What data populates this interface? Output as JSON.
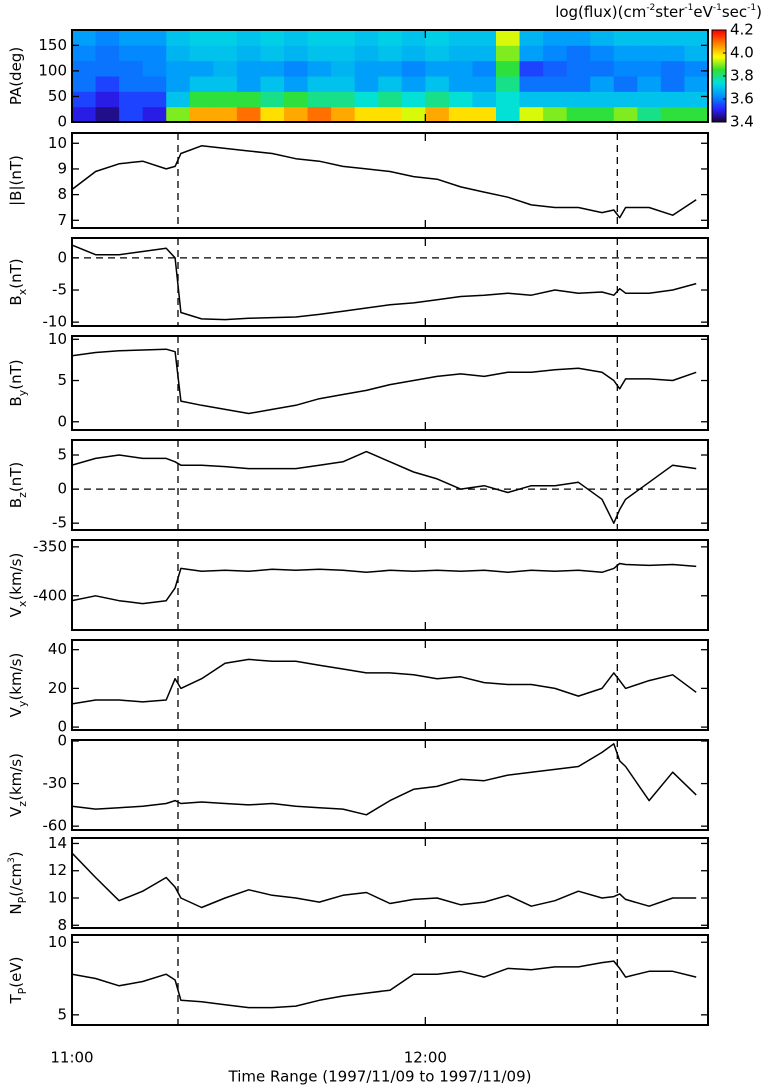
{
  "chart_data": [
    {
      "type": "heatmap",
      "ylabel": [
        {
          "t": "PA(deg)"
        }
      ],
      "ylim": [
        0,
        180
      ],
      "yticks": [
        0,
        50,
        100,
        150
      ],
      "x_bins": [
        0,
        4,
        8,
        12,
        16,
        20,
        24,
        28,
        32,
        36,
        40,
        44,
        48,
        52,
        56,
        60,
        64,
        68,
        72,
        76,
        80,
        84,
        88,
        92,
        96,
        100,
        104,
        108
      ],
      "y_bins": [
        0,
        30,
        60,
        90,
        120,
        150,
        180
      ],
      "values": [
        [
          3.5,
          3.45,
          3.55,
          3.5,
          3.9,
          4.05,
          4.05,
          4.1,
          4.0,
          4.05,
          4.1,
          4.05,
          4.0,
          4.0,
          3.95,
          4.05,
          4.0,
          4.0,
          3.75,
          3.95,
          3.9,
          3.85,
          3.85,
          3.9,
          3.8,
          3.85,
          3.85
        ],
        [
          3.55,
          3.5,
          3.55,
          3.55,
          3.7,
          3.85,
          3.85,
          3.85,
          3.8,
          3.85,
          3.8,
          3.8,
          3.75,
          3.8,
          3.75,
          3.8,
          3.75,
          3.7,
          3.75,
          3.7,
          3.7,
          3.7,
          3.7,
          3.7,
          3.7,
          3.7,
          3.7
        ],
        [
          3.6,
          3.55,
          3.6,
          3.6,
          3.65,
          3.7,
          3.7,
          3.65,
          3.7,
          3.65,
          3.7,
          3.7,
          3.65,
          3.7,
          3.65,
          3.7,
          3.65,
          3.65,
          3.8,
          3.6,
          3.6,
          3.6,
          3.65,
          3.6,
          3.65,
          3.6,
          3.65
        ],
        [
          3.6,
          3.6,
          3.6,
          3.62,
          3.65,
          3.65,
          3.68,
          3.65,
          3.65,
          3.62,
          3.65,
          3.68,
          3.65,
          3.65,
          3.62,
          3.65,
          3.65,
          3.62,
          3.85,
          3.55,
          3.58,
          3.6,
          3.6,
          3.62,
          3.62,
          3.6,
          3.62
        ],
        [
          3.62,
          3.6,
          3.62,
          3.62,
          3.68,
          3.7,
          3.7,
          3.68,
          3.7,
          3.68,
          3.7,
          3.7,
          3.68,
          3.7,
          3.68,
          3.7,
          3.68,
          3.68,
          3.9,
          3.65,
          3.62,
          3.6,
          3.62,
          3.65,
          3.65,
          3.65,
          3.68
        ],
        [
          3.65,
          3.62,
          3.65,
          3.65,
          3.7,
          3.72,
          3.72,
          3.7,
          3.72,
          3.7,
          3.72,
          3.72,
          3.7,
          3.72,
          3.7,
          3.72,
          3.7,
          3.7,
          3.95,
          3.68,
          3.65,
          3.65,
          3.68,
          3.7,
          3.7,
          3.7,
          3.7
        ]
      ],
      "clim": [
        3.4,
        4.2
      ],
      "cticks": [
        3.4,
        3.6,
        3.8,
        {
          "value": 4,
          "label": "4.0"
        },
        4.2
      ],
      "colorscale": [
        "#1a0030",
        "#2a20ff",
        "#0090ff",
        "#00e0e0",
        "#30e030",
        "#ffff00",
        "#ff8000",
        "#ff0000"
      ],
      "ctitle": [
        {
          "t": "log(flux)(cm"
        },
        {
          "t": "-2",
          "sup": true
        },
        {
          "t": "ster"
        },
        {
          "t": "-1",
          "sup": true
        },
        {
          "t": "eV"
        },
        {
          "t": "-1",
          "sup": true
        },
        {
          "t": "sec"
        },
        {
          "t": "-1",
          "sup": true
        },
        {
          "t": ")"
        }
      ]
    },
    {
      "type": "line",
      "ylabel": [
        {
          "t": "|B|(nT)"
        }
      ],
      "ylim": [
        6.7,
        10.4
      ],
      "yticks": [
        7,
        8,
        9,
        10
      ],
      "vlines": [
        18,
        92.6
      ],
      "series": [
        {
          "color": "#000000",
          "values": [
            8.2,
            8.9,
            9.2,
            9.3,
            9.0,
            9.1,
            9.6,
            9.9,
            9.8,
            9.7,
            9.6,
            9.4,
            9.3,
            9.1,
            9.0,
            8.9,
            8.7,
            8.6,
            8.3,
            8.1,
            7.9,
            7.6,
            7.5,
            7.5,
            7.3,
            7.4,
            7.1,
            7.5,
            7.5,
            7.2,
            7.8
          ]
        }
      ]
    },
    {
      "type": "line",
      "ylabel": [
        {
          "t": "B"
        },
        {
          "t": "x",
          "sub": true
        },
        {
          "t": "(nT)"
        }
      ],
      "ylim": [
        -10.6,
        3.1
      ],
      "yticks": [
        -10,
        -5,
        0
      ],
      "vlines": [
        18,
        92.6
      ],
      "hline": 0,
      "series": [
        {
          "color": "#000000",
          "values": [
            2,
            0.5,
            0.5,
            1,
            1.5,
            0,
            -8.5,
            -9.5,
            -9.6,
            -9.4,
            -9.3,
            -9.2,
            -8.8,
            -8.3,
            -7.8,
            -7.3,
            -7,
            -6.5,
            -6,
            -5.8,
            -5.5,
            -5.8,
            -5,
            -5.5,
            -5.3,
            -5.8,
            -4.8,
            -5.5,
            -5.5,
            -5,
            -4
          ]
        }
      ]
    },
    {
      "type": "line",
      "ylabel": [
        {
          "t": "B"
        },
        {
          "t": "y",
          "sub": true
        },
        {
          "t": "(nT)"
        }
      ],
      "ylim": [
        -1,
        10.4
      ],
      "yticks": [
        0,
        5,
        10
      ],
      "vlines": [
        18,
        92.6
      ],
      "series": [
        {
          "color": "#000000",
          "values": [
            8,
            8.4,
            8.6,
            8.7,
            8.8,
            8.5,
            2.5,
            2,
            1.5,
            1,
            1.5,
            2,
            2.8,
            3.3,
            3.8,
            4.5,
            5,
            5.5,
            5.8,
            5.5,
            6,
            6,
            6.3,
            6.5,
            6,
            5,
            4,
            5.2,
            5.2,
            5,
            6
          ]
        }
      ]
    },
    {
      "type": "line",
      "ylabel": [
        {
          "t": "B"
        },
        {
          "t": "z",
          "sub": true
        },
        {
          "t": "(nT)"
        }
      ],
      "ylim": [
        -6,
        7.2
      ],
      "yticks": [
        -5,
        0,
        5
      ],
      "vlines": [
        18,
        92.6
      ],
      "hline": 0,
      "series": [
        {
          "color": "#000000",
          "values": [
            3.5,
            4.5,
            5,
            4.5,
            4.5,
            4,
            3.5,
            3.5,
            3.3,
            3,
            3,
            3,
            3.5,
            4,
            5.5,
            4,
            2.5,
            1.5,
            0,
            0.5,
            -0.5,
            0.5,
            0.5,
            1,
            -1.5,
            -5,
            -3,
            -1.5,
            1,
            3.5,
            3
          ]
        }
      ]
    },
    {
      "type": "line",
      "ylabel": [
        {
          "t": "V"
        },
        {
          "t": "x",
          "sub": true
        },
        {
          "t": "(km/s)"
        }
      ],
      "ylim": [
        -435,
        -343
      ],
      "yticks": [
        -400,
        -350
      ],
      "vlines": [
        18,
        92.6
      ],
      "series": [
        {
          "color": "#000000",
          "values": [
            -405,
            -400,
            -405,
            -408,
            -405,
            -392,
            -372,
            -375,
            -374,
            -375,
            -373,
            -374,
            -373,
            -374,
            -376,
            -374,
            -375,
            -374,
            -375,
            -374,
            -376,
            -374,
            -375,
            -374,
            -376,
            -372,
            -367,
            -368,
            -369,
            -368,
            -370
          ]
        }
      ]
    },
    {
      "type": "line",
      "ylabel": [
        {
          "t": "V"
        },
        {
          "t": "y",
          "sub": true
        },
        {
          "t": "(km/s)"
        }
      ],
      "ylim": [
        -1.5,
        45
      ],
      "yticks": [
        0,
        20,
        40
      ],
      "vlines": [
        18,
        92.6
      ],
      "series": [
        {
          "color": "#000000",
          "values": [
            12,
            14,
            14,
            13,
            14,
            25,
            20,
            25,
            33,
            35,
            34,
            34,
            32,
            30,
            28,
            28,
            27,
            25,
            26,
            23,
            22,
            22,
            20,
            16,
            20,
            28,
            24,
            20,
            24,
            27,
            18
          ]
        }
      ]
    },
    {
      "type": "line",
      "ylabel": [
        {
          "t": "V"
        },
        {
          "t": "z",
          "sub": true
        },
        {
          "t": "(km/s)"
        }
      ],
      "ylim": [
        -62.7,
        0.7
      ],
      "yticks": [
        -60,
        -30,
        0
      ],
      "vlines": [
        18,
        92.6
      ],
      "series": [
        {
          "color": "#000000",
          "values": [
            -46,
            -48,
            -47,
            -46,
            -44,
            -42,
            -44,
            -43,
            -44,
            -45,
            -44,
            -46,
            -47,
            -48,
            -52,
            -42,
            -34,
            -32,
            -27,
            -28,
            -24,
            -22,
            -20,
            -18,
            -8,
            -2,
            -14,
            -18,
            -42,
            -22,
            -38
          ]
        }
      ]
    },
    {
      "type": "line",
      "ylabel": [
        {
          "t": "N"
        },
        {
          "t": "P",
          "sub": true
        },
        {
          "t": "(/cm"
        },
        {
          "t": "3",
          "sup": true
        },
        {
          "t": ")"
        }
      ],
      "ylim": [
        7.8,
        14.4
      ],
      "yticks": [
        8,
        10,
        12,
        14
      ],
      "vlines": [
        18,
        92.6
      ],
      "series": [
        {
          "color": "#000000",
          "values": [
            13.3,
            11.5,
            9.8,
            10.5,
            11.5,
            10.8,
            10,
            9.3,
            10,
            10.6,
            10.2,
            10,
            9.7,
            10.2,
            10.4,
            9.6,
            9.9,
            10,
            9.5,
            9.7,
            10.2,
            9.4,
            9.8,
            10.5,
            10,
            10.1,
            10.3,
            9.9,
            9.4,
            10,
            10
          ]
        }
      ]
    },
    {
      "type": "line",
      "ylabel": [
        {
          "t": "T"
        },
        {
          "t": "P",
          "sub": true
        },
        {
          "t": "(eV)"
        }
      ],
      "ylim": [
        4.3,
        10.5
      ],
      "yticks": [
        5,
        10
      ],
      "vlines": [
        18,
        92.6
      ],
      "series": [
        {
          "color": "#000000",
          "values": [
            7.8,
            7.5,
            7,
            7.3,
            7.8,
            7.4,
            6,
            5.9,
            5.7,
            5.5,
            5.5,
            5.6,
            6,
            6.3,
            6.5,
            6.7,
            7.8,
            7.8,
            8,
            7.6,
            8.2,
            8.1,
            8.3,
            8.3,
            8.6,
            8.7,
            8.2,
            7.6,
            8,
            8,
            7.6
          ]
        }
      ],
      "x": [
        0,
        4,
        8,
        12,
        16,
        17.5,
        18.5,
        22,
        26,
        30,
        34,
        38,
        42,
        46,
        50,
        54,
        58,
        62,
        66,
        70,
        74,
        78,
        82,
        86,
        90,
        92,
        93,
        94,
        98,
        102,
        106
      ],
      "xlim": [
        0,
        108
      ],
      "xticks": [
        {
          "value": 0,
          "label": "11:00"
        },
        {
          "value": 60,
          "label": "12:00"
        }
      ],
      "xlabel": "Time Range (1997/11/09 to 1997/11/09)"
    }
  ]
}
